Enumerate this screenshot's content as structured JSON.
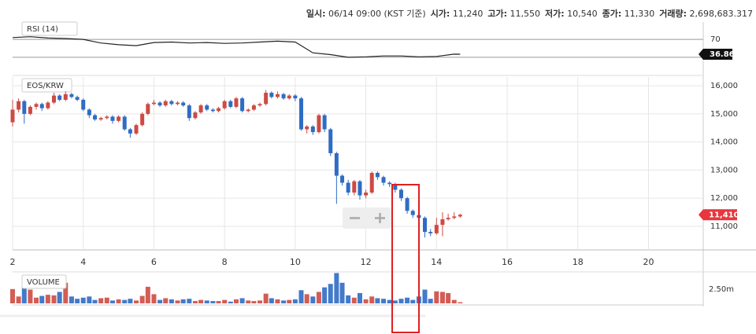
{
  "header": {
    "info": [
      {
        "label": "일시:",
        "value": "06/14 09:00 (KST 기준)"
      },
      {
        "label": "시가:",
        "value": "11,240"
      },
      {
        "label": "고가:",
        "value": "11,550"
      },
      {
        "label": "저가:",
        "value": "10,540"
      },
      {
        "label": "종가:",
        "value": "11,330"
      },
      {
        "label": "거래량:",
        "value": "2,698,683.317"
      }
    ]
  },
  "chart_data": [
    {
      "type": "line",
      "label": "RSI (14)",
      "color": "#222222",
      "x": [
        2,
        2.5,
        3,
        3.5,
        4,
        4.5,
        5,
        5.5,
        6,
        6.5,
        7,
        7.5,
        8,
        8.5,
        9,
        9.5,
        10,
        10.5,
        11,
        11.5,
        12,
        12.5,
        13,
        13.5,
        14,
        14.5,
        14.67
      ],
      "values": [
        74,
        76,
        73,
        72,
        70,
        62,
        58,
        56,
        63,
        64,
        62,
        63,
        61,
        62,
        64,
        66,
        64,
        40,
        36,
        30,
        31,
        33,
        33,
        31,
        32,
        37,
        36.86
      ],
      "ylim": [
        0,
        100
      ],
      "yticks": [
        70
      ],
      "levels": [
        70,
        30
      ],
      "last_value": 36.86
    },
    {
      "type": "candlestick",
      "label": "EOS/KRW",
      "up_color": "#cd4b43",
      "down_color": "#2f6cc4",
      "grid": true,
      "x": [
        2,
        2.17,
        2.33,
        2.5,
        2.67,
        2.83,
        3,
        3.17,
        3.33,
        3.5,
        3.67,
        3.83,
        4,
        4.17,
        4.33,
        4.5,
        4.67,
        4.83,
        5,
        5.17,
        5.33,
        5.5,
        5.67,
        5.83,
        6,
        6.17,
        6.33,
        6.5,
        6.67,
        6.83,
        7,
        7.17,
        7.33,
        7.5,
        7.67,
        7.83,
        8,
        8.17,
        8.33,
        8.5,
        8.67,
        8.83,
        9,
        9.17,
        9.33,
        9.5,
        9.67,
        9.83,
        10,
        10.17,
        10.33,
        10.5,
        10.67,
        10.83,
        11,
        11.17,
        11.33,
        11.5,
        11.67,
        11.83,
        12,
        12.17,
        12.33,
        12.5,
        12.67,
        12.83,
        13,
        13.17,
        13.33,
        13.5,
        13.67,
        13.83,
        14,
        14.17,
        14.33,
        14.5,
        14.67
      ],
      "open": [
        14700,
        15150,
        15450,
        15000,
        15250,
        15350,
        15200,
        15400,
        15650,
        15500,
        15700,
        15600,
        15500,
        15150,
        14950,
        14800,
        14850,
        14900,
        14750,
        14900,
        14450,
        14300,
        14600,
        15000,
        15350,
        15400,
        15300,
        15450,
        15350,
        15400,
        15300,
        14850,
        15050,
        15300,
        15150,
        15100,
        15200,
        15450,
        15250,
        15550,
        15100,
        15150,
        15300,
        15350,
        15750,
        15600,
        15700,
        15550,
        15650,
        15550,
        14450,
        14550,
        14350,
        14950,
        14450,
        13600,
        12800,
        12550,
        12200,
        12600,
        12100,
        12200,
        12900,
        12750,
        12550,
        12500,
        12300,
        12000,
        11550,
        11400,
        11300,
        10800,
        10750,
        11050,
        11250,
        11300,
        11350
      ],
      "high": [
        15500,
        15550,
        15500,
        15300,
        15400,
        15400,
        15450,
        15750,
        15700,
        15800,
        15750,
        15650,
        15550,
        15200,
        15000,
        14900,
        14950,
        14950,
        14950,
        14950,
        14500,
        14650,
        15050,
        15400,
        15500,
        15450,
        15500,
        15500,
        15450,
        15450,
        15350,
        15100,
        15350,
        15350,
        15200,
        15250,
        15500,
        15500,
        15600,
        15600,
        15200,
        15350,
        15400,
        15850,
        15800,
        15800,
        15750,
        15700,
        15700,
        15600,
        14600,
        14600,
        15000,
        15000,
        14500,
        13650,
        12850,
        12650,
        12650,
        12650,
        12300,
        12950,
        12950,
        12800,
        12600,
        12550,
        12350,
        12050,
        11600,
        11450,
        11350,
        10900,
        11300,
        11500,
        11450,
        11500,
        11450
      ],
      "low": [
        14550,
        15050,
        14650,
        14950,
        15150,
        15100,
        15150,
        15350,
        15450,
        15450,
        15550,
        15450,
        15100,
        14850,
        14750,
        14750,
        14800,
        14650,
        14700,
        14400,
        14150,
        14250,
        14550,
        14950,
        15300,
        15250,
        15250,
        15300,
        15300,
        15250,
        14750,
        14800,
        15000,
        15100,
        15050,
        15050,
        15150,
        15200,
        15200,
        15050,
        15050,
        15100,
        15250,
        15300,
        15550,
        15550,
        15500,
        15500,
        15450,
        14400,
        14300,
        14250,
        14300,
        14350,
        13500,
        11800,
        12450,
        12100,
        12100,
        11950,
        12000,
        12150,
        12650,
        12450,
        12400,
        12200,
        11900,
        11450,
        11300,
        11200,
        10600,
        10650,
        10700,
        10650,
        11200,
        11250,
        11300
      ],
      "close": [
        15150,
        15450,
        15000,
        15250,
        15350,
        15200,
        15400,
        15650,
        15500,
        15700,
        15600,
        15500,
        15150,
        14950,
        14800,
        14850,
        14900,
        14750,
        14900,
        14450,
        14300,
        14600,
        15000,
        15350,
        15400,
        15300,
        15450,
        15350,
        15400,
        15300,
        14850,
        15050,
        15300,
        15150,
        15100,
        15200,
        15450,
        15250,
        15550,
        15100,
        15150,
        15300,
        15350,
        15750,
        15600,
        15700,
        15550,
        15650,
        15550,
        14450,
        14550,
        14350,
        14950,
        14450,
        13600,
        12800,
        12550,
        12200,
        12600,
        12100,
        12200,
        12900,
        12750,
        12550,
        12500,
        12300,
        12000,
        11550,
        11400,
        11300,
        10800,
        10750,
        11050,
        11250,
        11300,
        11350,
        11410
      ],
      "xlim": [
        2,
        21.55
      ],
      "xticks": [
        2,
        4,
        6,
        8,
        10,
        12,
        14,
        16,
        18,
        20
      ],
      "ylim": [
        10160,
        16310
      ],
      "yticks": [
        {
          "value": 11000,
          "label": "11,000"
        },
        {
          "value": 12000,
          "label": "12,000"
        },
        {
          "value": 13000,
          "label": "13,000"
        },
        {
          "value": 14000,
          "label": "14,000"
        },
        {
          "value": 15000,
          "label": "15,000"
        },
        {
          "value": 16000,
          "label": "16,000"
        }
      ],
      "last_price": {
        "value": 11410,
        "label": "11,410"
      }
    },
    {
      "type": "bar",
      "label": "VOLUME",
      "values": [
        2500000,
        1200000,
        3400000,
        2400000,
        1000000,
        1300000,
        1500000,
        1400000,
        2000000,
        3600000,
        1200000,
        800000,
        1000000,
        1200000,
        600000,
        900000,
        1000000,
        500000,
        700000,
        600000,
        800000,
        500000,
        1300000,
        2900000,
        1600000,
        600000,
        900000,
        700000,
        500000,
        700000,
        800000,
        400000,
        600000,
        500000,
        400000,
        400000,
        600000,
        300000,
        700000,
        900000,
        500000,
        400000,
        500000,
        1700000,
        900000,
        700000,
        500000,
        600000,
        700000,
        2300000,
        1600000,
        1200000,
        2000000,
        2800000,
        3400000,
        5300000,
        3600000,
        1400000,
        1000000,
        1800000,
        700000,
        1200000,
        900000,
        800000,
        600000,
        500000,
        800000,
        1000000,
        600000,
        1200000,
        2400000,
        800000,
        2100000,
        2000000,
        1800000,
        600000,
        200000
      ],
      "ylim": [
        0,
        5500000
      ],
      "yticks": [
        {
          "value": 2500000,
          "label": "2.50m"
        }
      ]
    }
  ]
}
